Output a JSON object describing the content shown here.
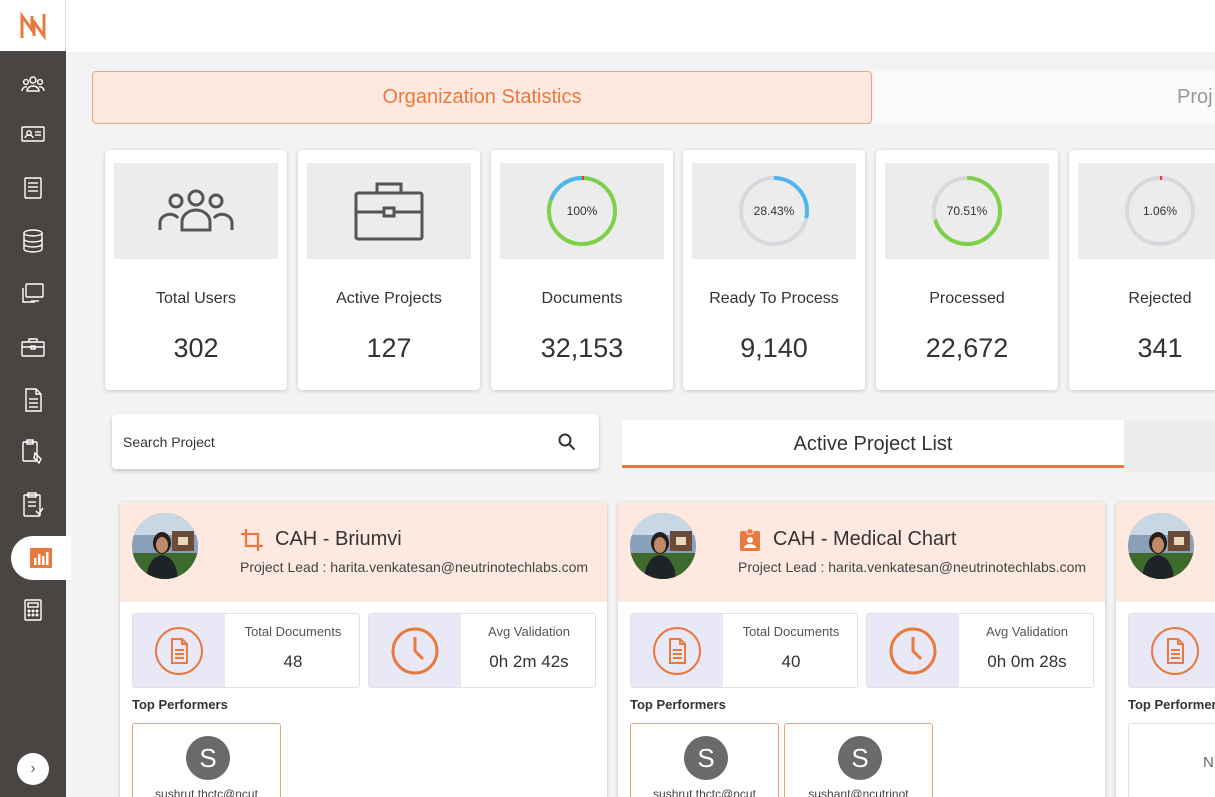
{
  "sidebar": {
    "logo": "neutrino-logo",
    "items": [
      {
        "icon": "users-icon"
      },
      {
        "icon": "id-card-icon"
      },
      {
        "icon": "list-icon"
      },
      {
        "icon": "database-icon"
      },
      {
        "icon": "monitor-icon"
      },
      {
        "icon": "briefcase-icon"
      },
      {
        "icon": "document-icon"
      },
      {
        "icon": "clipboard-icon"
      },
      {
        "icon": "task-list-icon"
      },
      {
        "icon": "bar-chart-icon",
        "active": true
      },
      {
        "icon": "calculator-icon"
      }
    ],
    "expand_glyph": "›"
  },
  "tabs": {
    "org_stats": "Organization Statistics",
    "projects": "Proj"
  },
  "stats": [
    {
      "label": "Total Users",
      "value": "302",
      "icon": "users-group-icon"
    },
    {
      "label": "Active Projects",
      "value": "127",
      "icon": "briefcase-icon"
    },
    {
      "label": "Documents",
      "value": "32,153",
      "percent": "100%",
      "fraction": 1.0
    },
    {
      "label": "Ready To Process",
      "value": "9,140",
      "percent": "28.43%",
      "fraction": 0.2843
    },
    {
      "label": "Processed",
      "value": "22,672",
      "percent": "70.51%",
      "fraction": 0.7051
    },
    {
      "label": "Rejected",
      "value": "341",
      "percent": "1.06%",
      "fraction": 0.0106
    }
  ],
  "colors": {
    "accent": "#e8793f",
    "blue": "#4db6f0",
    "green": "#7ed04b",
    "red": "#e03c3c",
    "track": "#d6d9de"
  },
  "search": {
    "label": "Search Project"
  },
  "list_tab": "Active Project List",
  "projects": [
    {
      "title": "CAH - Briumvi",
      "lead": "Project Lead : harita.venkatesan@neutrinotechlabs.com",
      "total_documents_label": "Total Documents",
      "total_documents": "48",
      "avg_validation_label": "Avg Validation",
      "avg_validation": "0h 2m 42s",
      "top_performers_label": "Top Performers",
      "performers": [
        {
          "initial": "S",
          "email": "sushrut.thctc@ncut"
        }
      ]
    },
    {
      "title": "CAH - Medical Chart",
      "lead": "Project Lead : harita.venkatesan@neutrinotechlabs.com",
      "total_documents_label": "Total Documents",
      "total_documents": "40",
      "avg_validation_label": "Avg Validation",
      "avg_validation": "0h 0m 28s",
      "top_performers_label": "Top Performers",
      "performers": [
        {
          "initial": "S",
          "email": "sushrut.thctc@ncut"
        },
        {
          "initial": "S",
          "email": "sushant@ncutrinot"
        }
      ]
    },
    {
      "top_performers_label": "Top Performer",
      "empty_text": "N"
    }
  ]
}
